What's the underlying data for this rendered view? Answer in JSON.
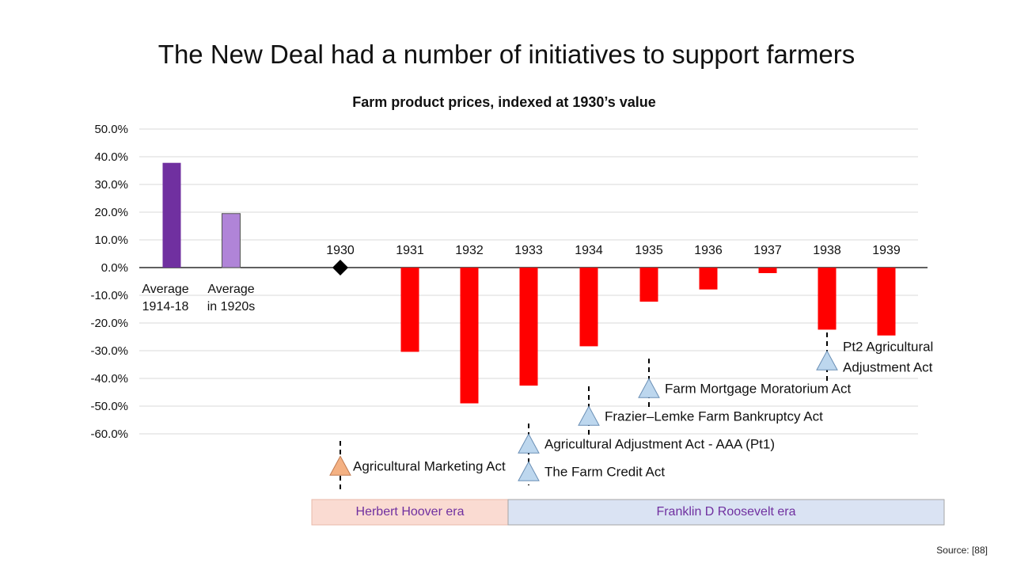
{
  "slide": {
    "title": "The New Deal had a number of initiatives to support farmers",
    "source": "Source: [88]"
  },
  "colors": {
    "avg_1914_18": "#7030a0",
    "avg_1920s": "#b084d8",
    "year_bars": "#ff0000",
    "marker_1930": "#000000",
    "hoover_act_marker": "#f4b183",
    "roosevelt_act_marker": "#bdd7ee",
    "hoover_band": "#fadbd2",
    "roosevelt_band": "#dae3f3",
    "era_text": "#7030a0"
  },
  "chart_data": {
    "type": "bar",
    "title": "Farm product prices, indexed at 1930’s value",
    "y_unit": "percent",
    "ylim": [
      -60,
      50
    ],
    "yticks": [
      "50.0%",
      "40.0%",
      "30.0%",
      "20.0%",
      "10.0%",
      "0.0%",
      "-10.0%",
      "-20.0%",
      "-30.0%",
      "-40.0%",
      "-50.0%",
      "-60.0%"
    ],
    "grid": true,
    "averages": [
      {
        "label_line1": "Average",
        "label_line2": "1914-18",
        "value": 37.8
      },
      {
        "label_line1": "Average",
        "label_line2": "in 1920s",
        "value": 19.5
      }
    ],
    "years": [
      {
        "label": "1930",
        "value": 0.0
      },
      {
        "label": "1931",
        "value": -30.4
      },
      {
        "label": "1932",
        "value": -49.0
      },
      {
        "label": "1933",
        "value": -42.6
      },
      {
        "label": "1934",
        "value": -28.4
      },
      {
        "label": "1935",
        "value": -12.3
      },
      {
        "label": "1936",
        "value": -7.9
      },
      {
        "label": "1937",
        "value": -2.0
      },
      {
        "label": "1938",
        "value": -22.4
      },
      {
        "label": "1939",
        "value": -24.5
      }
    ],
    "acts": [
      {
        "name": "Agricultural Marketing Act",
        "year": "1930",
        "level": -71.5,
        "era": "hoover"
      },
      {
        "name": "Agricultural Adjustment Act - AAA (Pt1)",
        "year": "1933",
        "level": -63.5,
        "era": "roosevelt"
      },
      {
        "name": "The Farm Credit Act",
        "year": "1933",
        "level": -73.5,
        "era": "roosevelt"
      },
      {
        "name": "Frazier–Lemke Farm Bankruptcy Act",
        "year": "1934",
        "level": -53.5,
        "era": "roosevelt"
      },
      {
        "name": "Farm Mortgage Moratorium Act",
        "year": "1935",
        "level": -43.5,
        "era": "roosevelt"
      },
      {
        "name": "Pt2 Agricultural",
        "name_line2": "Adjustment Act",
        "year": "1938",
        "level": -33.5,
        "era": "roosevelt"
      }
    ],
    "eras": [
      {
        "label": "Herbert Hoover era"
      },
      {
        "label": "Franklin D Roosevelt era"
      }
    ]
  }
}
